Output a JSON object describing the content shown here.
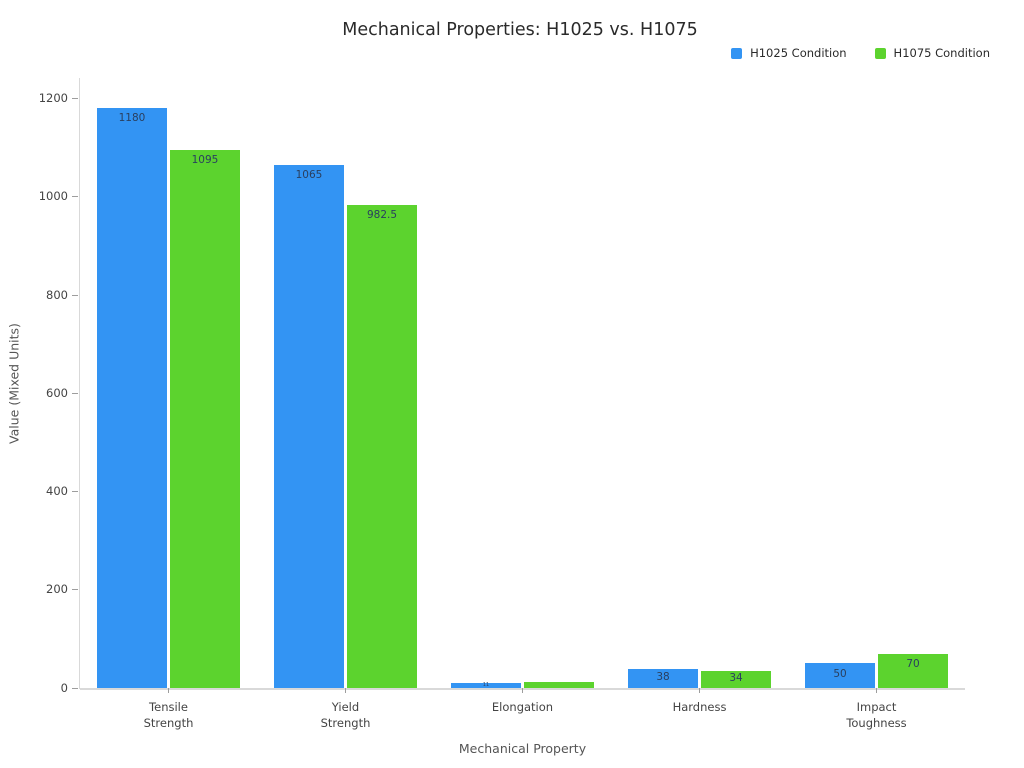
{
  "title": "Mechanical Properties: H1025 vs. H1075",
  "legend": {
    "items": [
      {
        "label": "H1025 Condition",
        "color": "#3394f3"
      },
      {
        "label": "H1075 Condition",
        "color": "#5cd32e"
      }
    ]
  },
  "chart_data": {
    "type": "bar",
    "title": "Mechanical Properties: H1025 vs. H1075",
    "xlabel": "Mechanical Property",
    "ylabel": "Value (Mixed Units)",
    "categories": [
      "Tensile Strength",
      "Yield Strength",
      "Elongation",
      "Hardness",
      "Impact Toughness"
    ],
    "category_lines": [
      [
        "Tensile",
        "Strength"
      ],
      [
        "Yield",
        "Strength"
      ],
      [
        "Elongation"
      ],
      [
        "Hardness"
      ],
      [
        "Impact",
        "Toughness"
      ]
    ],
    "series": [
      {
        "name": "H1025 Condition",
        "color": "#3394f3",
        "values": [
          1180,
          1065,
          11,
          38,
          50
        ],
        "labels": [
          "1180",
          "1065",
          "11",
          "38",
          "50"
        ]
      },
      {
        "name": "H1075 Condition",
        "color": "#5cd32e",
        "values": [
          1095,
          982.5,
          12,
          34,
          70
        ],
        "labels": [
          "1095",
          "982.5",
          "",
          "34",
          "70"
        ]
      }
    ],
    "ylim": [
      0,
      1242
    ],
    "yticks": [
      0,
      200,
      400,
      600,
      800,
      1000,
      1200
    ],
    "grid": false,
    "legend_position": "top-right",
    "bar_label_color": "#2a3f5f",
    "axis_color": "#d9d9d9"
  }
}
